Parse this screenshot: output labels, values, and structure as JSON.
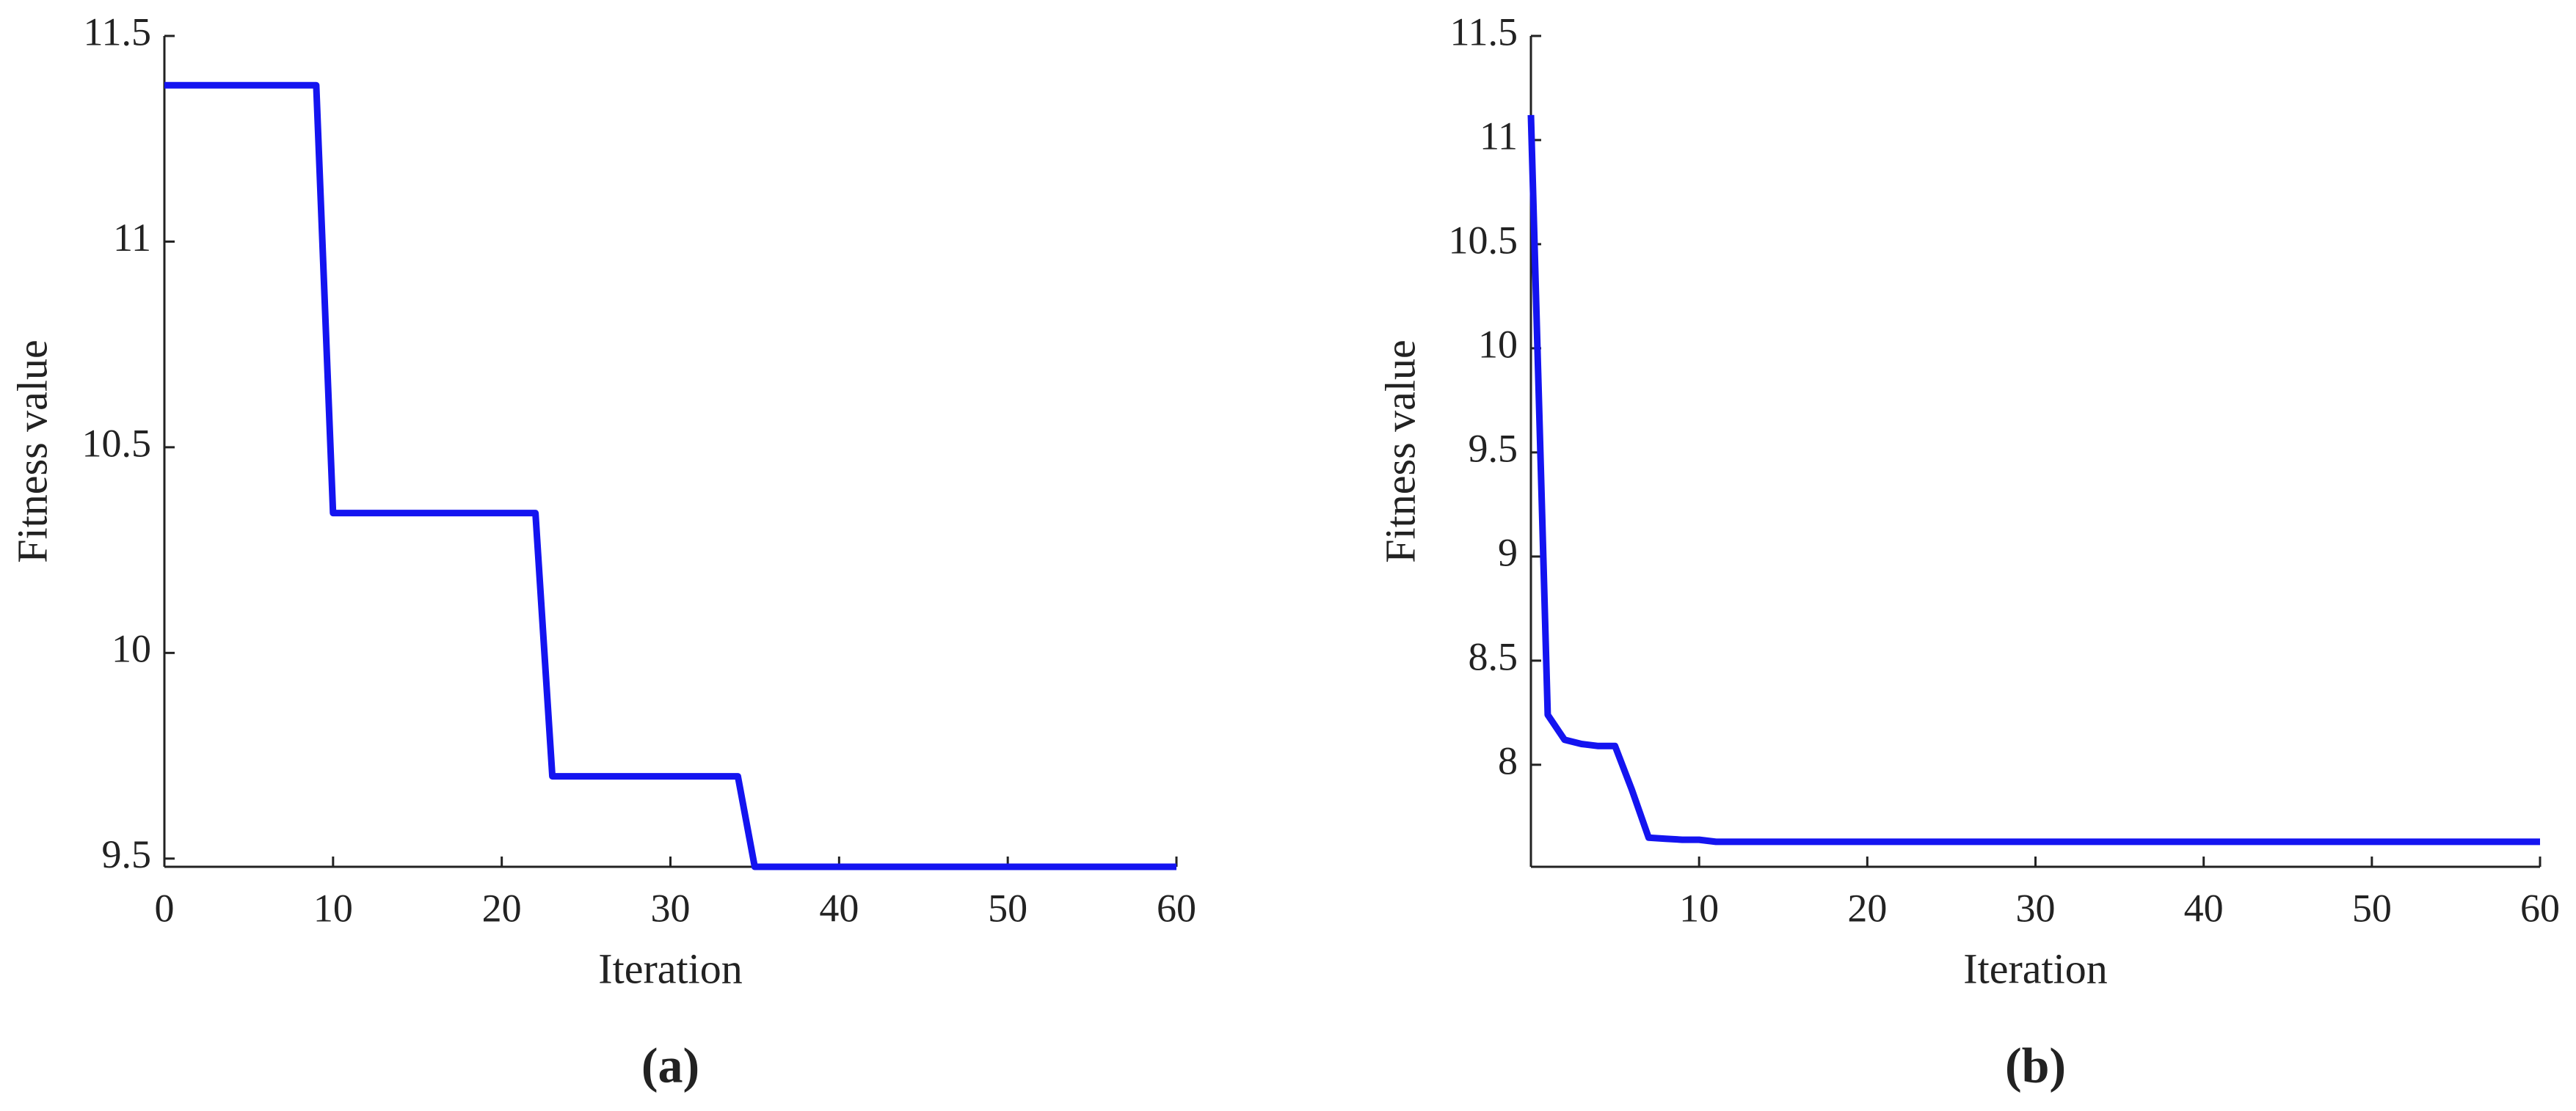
{
  "chart_data": [
    {
      "type": "line",
      "caption": "(a)",
      "xlabel": "Iteration",
      "ylabel": "Fitness value",
      "x": [
        0,
        9,
        10,
        22,
        23,
        34,
        35,
        60
      ],
      "values": [
        11.38,
        11.38,
        10.34,
        10.34,
        9.7,
        9.7,
        9.48,
        9.48
      ],
      "color": "#1414f0",
      "xlim": [
        0,
        60
      ],
      "ylim": [
        9.48,
        11.5
      ],
      "xticks": [
        0,
        10,
        20,
        30,
        40,
        50,
        60
      ],
      "yticks": [
        9.5,
        10,
        10.5,
        11,
        11.5
      ]
    },
    {
      "type": "line",
      "caption": "(b)",
      "xlabel": "Iteration",
      "ylabel": "Fitness value",
      "x": [
        0,
        1,
        2,
        3,
        4,
        5,
        6,
        7,
        8,
        9,
        10,
        11,
        60
      ],
      "values": [
        11.12,
        8.24,
        8.12,
        8.1,
        8.09,
        8.09,
        7.88,
        7.65,
        7.645,
        7.64,
        7.64,
        7.63,
        7.63
      ],
      "color": "#1414f0",
      "xlim": [
        0,
        60
      ],
      "ylim": [
        7.51,
        11.5
      ],
      "xticks": [
        10,
        20,
        30,
        40,
        50,
        60
      ],
      "yticks": [
        8,
        8.5,
        9,
        9.5,
        10,
        10.5,
        11,
        11.5
      ]
    }
  ]
}
